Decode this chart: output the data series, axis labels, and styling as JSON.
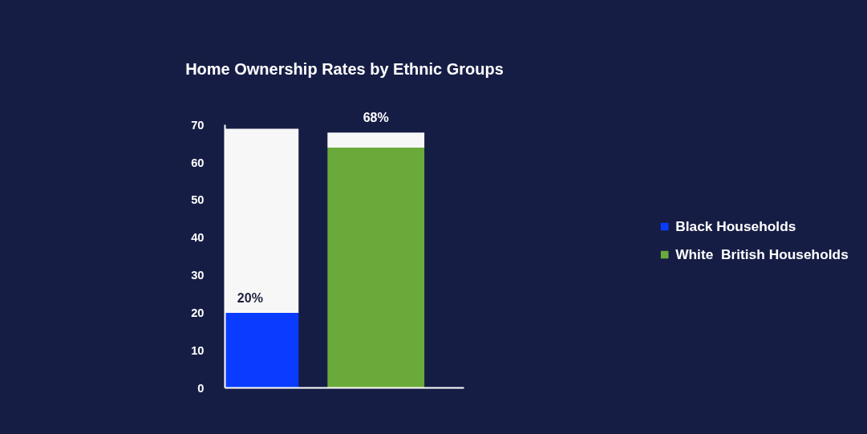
{
  "chart_data": {
    "type": "bar",
    "title": "Home Ownership Rates by Ethnic Groups",
    "categories": [
      null,
      null
    ],
    "stacked": true,
    "series": [
      {
        "name": "Black Households",
        "color": "#0a3cff",
        "values": [
          20,
          null
        ],
        "value_labels": [
          "20%",
          null
        ]
      },
      {
        "name": "White  British Households",
        "color": "#6aaa3a",
        "values": [
          null,
          64
        ]
      },
      {
        "color": "#f7f7f7",
        "values": [
          49,
          4
        ]
      }
    ],
    "totals": [
      null,
      "68%"
    ],
    "ylim": [
      0,
      70
    ],
    "yticks": [
      0,
      10,
      20,
      30,
      40,
      50,
      60,
      70
    ],
    "grid": false,
    "legend": "right",
    "tick_labels": "y"
  }
}
